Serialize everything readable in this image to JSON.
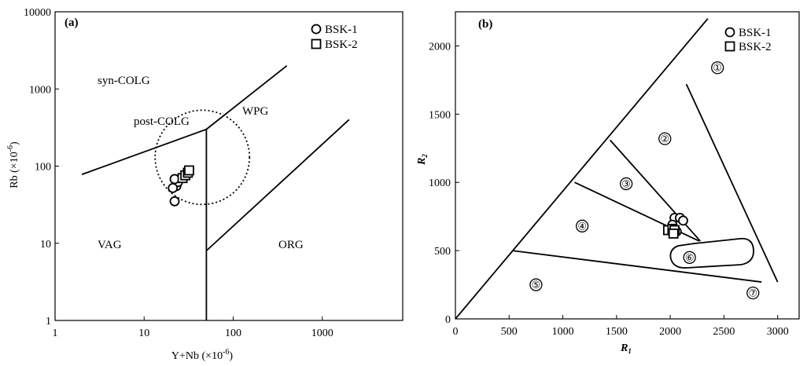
{
  "chart_data": [
    {
      "type": "scatter",
      "panel": "(a)",
      "title": "",
      "xlabel_main": "Y+Nb",
      "xlabel_unit": "(×10",
      "xlabel_exp": "-6",
      "ylabel_main": "Rb",
      "ylabel_unit": "(×10",
      "ylabel_exp": "-6",
      "xscale": "log",
      "yscale": "log",
      "xlim": [
        1,
        8000
      ],
      "ylim": [
        1,
        10000
      ],
      "xticks": [
        1,
        10,
        100,
        1000
      ],
      "xtick_labels": [
        "1",
        "10",
        "100",
        "1000"
      ],
      "yticks": [
        1,
        10,
        100,
        1000,
        10000
      ],
      "ytick_labels": [
        "1",
        "10",
        "100",
        "1000",
        "10000"
      ],
      "legend": {
        "position": "top-right",
        "entries": [
          "BSK-1",
          "BSK-2"
        ]
      },
      "series": [
        {
          "name": "BSK-1",
          "marker": "circle",
          "x": [
            22,
            23,
            24,
            22,
            21
          ],
          "y": [
            35,
            55,
            62,
            68,
            52
          ]
        },
        {
          "name": "BSK-2",
          "marker": "square",
          "x": [
            27,
            29,
            31,
            32
          ],
          "y": [
            70,
            76,
            82,
            88
          ]
        }
      ],
      "regions": [
        "syn-COLG",
        "post-COLG",
        "WPG",
        "VAG",
        "ORG"
      ],
      "boundaries": [
        [
          [
            2,
            78
          ],
          [
            50,
            300
          ]
        ],
        [
          [
            50,
            300
          ],
          [
            400,
            2000
          ]
        ],
        [
          [
            50,
            300
          ],
          [
            50,
            1
          ]
        ],
        [
          [
            50,
            8
          ],
          [
            2000,
            400
          ]
        ]
      ],
      "annotation_circle": {
        "center": [
          45,
          130
        ]
      }
    },
    {
      "type": "scatter",
      "panel": "(b)",
      "title": "",
      "xlabel": "R",
      "xlabel_sub": "1",
      "ylabel": "R",
      "ylabel_sub": "2",
      "xlim": [
        0,
        3200
      ],
      "ylim": [
        0,
        2250
      ],
      "xticks": [
        0,
        500,
        1000,
        1500,
        2000,
        2500,
        3000
      ],
      "xtick_labels": [
        "0",
        "500",
        "1000",
        "1500",
        "2000",
        "2500",
        "3000"
      ],
      "yticks": [
        0,
        500,
        1000,
        1500,
        2000
      ],
      "ytick_labels": [
        "0",
        "500",
        "1000",
        "1500",
        "2000"
      ],
      "legend": {
        "position": "top-right",
        "entries": [
          "BSK-1",
          "BSK-2"
        ]
      },
      "series": [
        {
          "name": "BSK-1",
          "marker": "circle",
          "x": [
            2040,
            2090,
            2120,
            2060,
            2020
          ],
          "y": [
            740,
            740,
            720,
            640,
            690
          ]
        },
        {
          "name": "BSK-2",
          "marker": "square",
          "x": [
            1980,
            2020,
            2040,
            2030
          ],
          "y": [
            650,
            660,
            650,
            625
          ]
        }
      ],
      "boundaries": [
        [
          [
            0,
            0
          ],
          [
            2350,
            2200
          ]
        ],
        [
          [
            2150,
            1720
          ],
          [
            3000,
            270
          ]
        ],
        [
          [
            1440,
            1310
          ],
          [
            2280,
            570
          ]
        ],
        [
          [
            1110,
            1000
          ],
          [
            2270,
            570
          ]
        ],
        [
          [
            530,
            500
          ],
          [
            2850,
            270
          ]
        ]
      ],
      "region_numbers": [
        {
          "label": "①",
          "x": 2440,
          "y": 1840
        },
        {
          "label": "②",
          "x": 1950,
          "y": 1320
        },
        {
          "label": "③",
          "x": 1590,
          "y": 990
        },
        {
          "label": "④",
          "x": 1180,
          "y": 680
        },
        {
          "label": "⑤",
          "x": 750,
          "y": 250
        },
        {
          "label": "⑥",
          "x": 2180,
          "y": 450
        },
        {
          "label": "⑦",
          "x": 2770,
          "y": 190
        }
      ]
    }
  ]
}
